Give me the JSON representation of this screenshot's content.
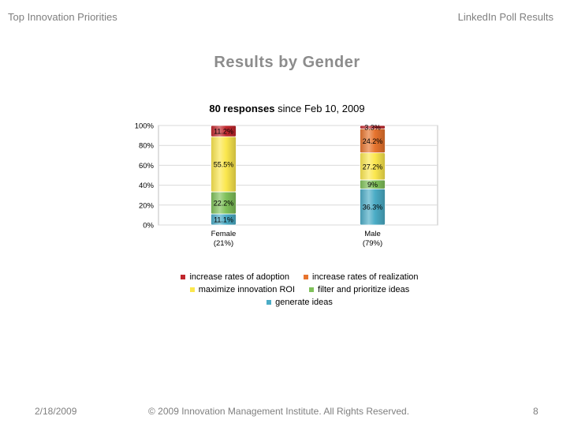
{
  "header": {
    "left": "Top Innovation Priorities",
    "right": "LinkedIn Poll Results"
  },
  "slide_title": "Results by Gender",
  "chart_heading": {
    "bold": "80 responses",
    "rest": " since Feb 10, 2009"
  },
  "footer": {
    "date": "2/18/2009",
    "copyright": "© 2009 Innovation Management Institute. All Rights Reserved.",
    "page": "8"
  },
  "chart_data": {
    "type": "bar",
    "stacked": true,
    "percent": true,
    "title": "80 responses since Feb 10, 2009",
    "categories": [
      "Female",
      "Male"
    ],
    "category_sublabels": [
      "(21%)",
      "(79%)"
    ],
    "ylim": [
      0,
      100
    ],
    "yticks": [
      "0%",
      "20%",
      "40%",
      "60%",
      "80%",
      "100%"
    ],
    "grid": true,
    "legend_position": "bottom",
    "series": [
      {
        "name": "generate ideas",
        "values": [
          11.1,
          36.3
        ],
        "labels": [
          "11.1%",
          "36.3%"
        ],
        "color": "#4bacc6"
      },
      {
        "name": "filter and prioritize ideas",
        "values": [
          22.2,
          9
        ],
        "labels": [
          "22.2%",
          "9%"
        ],
        "color": "#7fc15a"
      },
      {
        "name": "maximize innovation ROI",
        "values": [
          55.5,
          27.2
        ],
        "labels": [
          "55.5%",
          "27.2%"
        ],
        "color": "#fbe74e"
      },
      {
        "name": "increase rates of realization",
        "values": [
          0,
          24.2
        ],
        "labels": [
          "",
          "24.2%"
        ],
        "color": "#e7742e"
      },
      {
        "name": "increase rates of adoption",
        "values": [
          11.2,
          3.3
        ],
        "labels": [
          "11.2%",
          "3.3%"
        ],
        "color": "#c0272d"
      }
    ]
  },
  "legend_rows": [
    [
      {
        "label": "increase rates of adoption",
        "color": "#c0272d"
      },
      {
        "label": "increase rates of realization",
        "color": "#e7742e"
      }
    ],
    [
      {
        "label": "maximize innovation ROI",
        "color": "#fbe74e"
      },
      {
        "label": "filter and prioritize ideas",
        "color": "#7fc15a"
      }
    ],
    [
      {
        "label": "generate ideas",
        "color": "#4bacc6"
      }
    ]
  ]
}
